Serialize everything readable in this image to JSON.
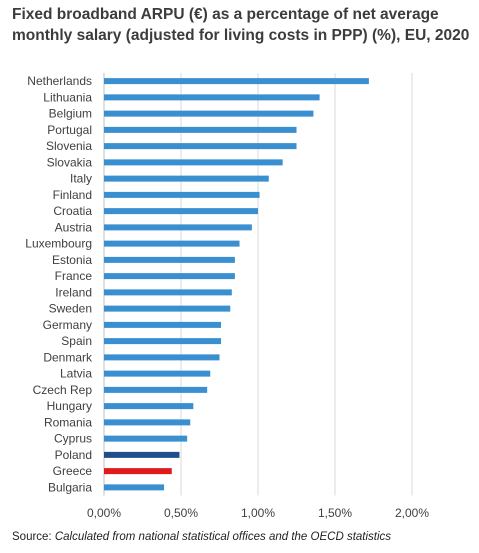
{
  "chart_data": {
    "type": "bar",
    "orientation": "horizontal",
    "title": "Fixed broadband ARPU (€) as a percentage of net average monthly salary (adjusted for living costs in PPP) (%), EU, 2020",
    "categories": [
      "Netherlands",
      "Lithuania",
      "Belgium",
      "Portugal",
      "Slovenia",
      "Slovakia",
      "Italy",
      "Finland",
      "Croatia",
      "Austria",
      "Luxembourg",
      "Estonia",
      "France",
      "Ireland",
      "Sweden",
      "Germany",
      "Spain",
      "Denmark",
      "Latvia",
      "Czech Rep",
      "Hungary",
      "Romania",
      "Cyprus",
      "Poland",
      "Greece",
      "Bulgaria"
    ],
    "values": [
      1.72,
      1.4,
      1.36,
      1.25,
      1.25,
      1.16,
      1.07,
      1.01,
      1.0,
      0.96,
      0.88,
      0.85,
      0.85,
      0.83,
      0.82,
      0.76,
      0.76,
      0.75,
      0.69,
      0.67,
      0.58,
      0.56,
      0.54,
      0.49,
      0.44,
      0.39
    ],
    "bar_colors": {
      "default": "#3a8fd1",
      "Poland": "#1f4e8c",
      "Greece": "#e0191b"
    },
    "x_ticks": [
      "0,00%",
      "0,50%",
      "1,00%",
      "1,50%",
      "2,00%"
    ],
    "xlim": [
      0,
      2.0
    ],
    "xlabel": "",
    "ylabel": "",
    "grid": true
  },
  "footer": {
    "source_prefix": "Source: ",
    "source_note": "Calculated from national statistical offices and the OECD statistics"
  }
}
